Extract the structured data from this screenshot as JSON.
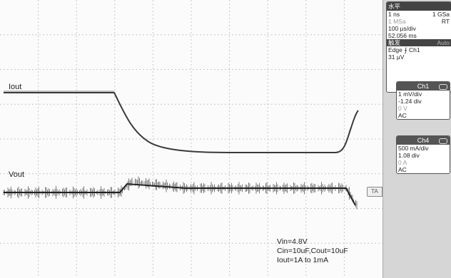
{
  "waveform_labels": {
    "iout": "Iout",
    "vout": "Vout"
  },
  "conditions": [
    "Vin=4.8V",
    "Cin=10uF,Cout=10uF",
    "Iout=1A to 1mA"
  ],
  "trigger_marker": "TA",
  "horizontal": {
    "title": "水平",
    "res": "1 ns",
    "rate": "1 GSa",
    "mem": "1 MSa",
    "mode": "RT",
    "scale": "100 µs/div",
    "position": "52.056 ms"
  },
  "trigger": {
    "title": "触发",
    "mode": "Auto",
    "type": "Edge",
    "source": "Ch1",
    "level": "31 µV"
  },
  "channels": [
    {
      "name": "Ch1",
      "scale": "1 mV/div",
      "offset_div": "-1.24 div",
      "offset_val": "0 V",
      "coupling": "AC"
    },
    {
      "name": "Ch4",
      "scale": "500 mA/div",
      "offset_div": "1.08 div",
      "offset_val": "0 A",
      "coupling": "AC"
    }
  ],
  "colors": {
    "trace": "#3a3a3a",
    "grid": "#c8c8c8",
    "panel": "#d6d6d6"
  }
}
